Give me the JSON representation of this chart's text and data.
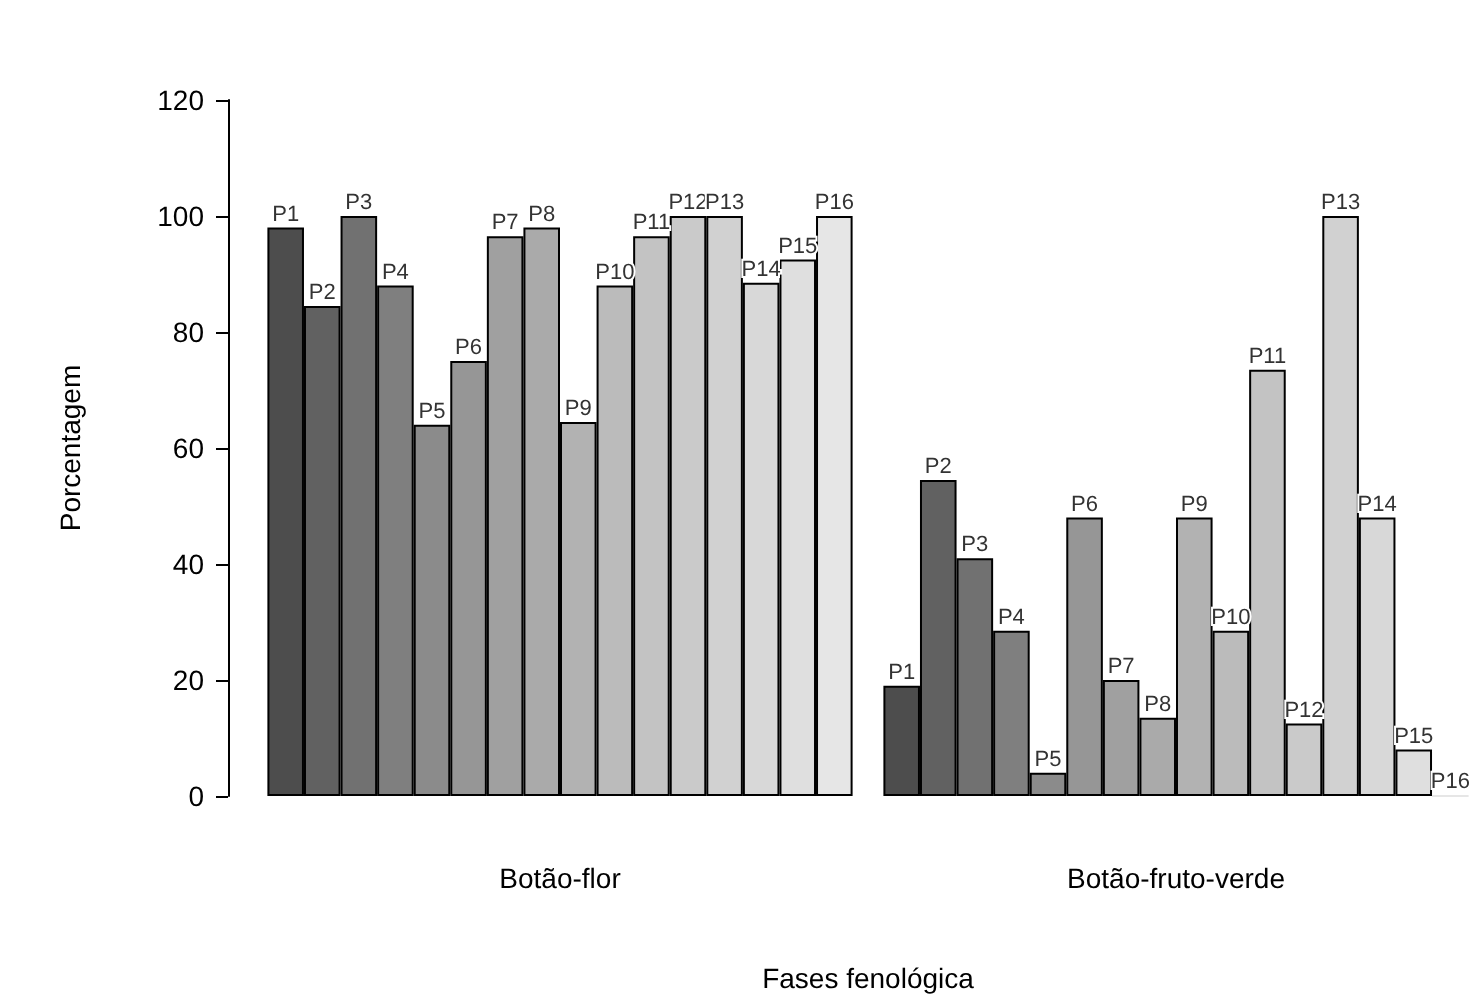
{
  "chart_data": {
    "type": "bar",
    "xlabel": "Fases fenológica",
    "ylabel": "Porcentagem",
    "categories": [
      "Botão-flor",
      "Botão-fruto-verde"
    ],
    "ylim": [
      0,
      120
    ],
    "yticks": [
      0,
      20,
      40,
      60,
      80,
      100,
      120
    ],
    "grid": false,
    "legend": false,
    "series": [
      {
        "name": "P1",
        "color": "#4d4d4d",
        "values": [
          98,
          19
        ]
      },
      {
        "name": "P2",
        "color": "#616161",
        "values": [
          84.5,
          54.5
        ]
      },
      {
        "name": "P3",
        "color": "#717171",
        "values": [
          100,
          41
        ]
      },
      {
        "name": "P4",
        "color": "#7f7f7f",
        "values": [
          88,
          28.5
        ]
      },
      {
        "name": "P5",
        "color": "#8b8b8b",
        "values": [
          64,
          4
        ]
      },
      {
        "name": "P6",
        "color": "#969696",
        "values": [
          75,
          48
        ]
      },
      {
        "name": "P7",
        "color": "#a0a0a0",
        "values": [
          96.5,
          20
        ]
      },
      {
        "name": "P8",
        "color": "#aaaaaa",
        "values": [
          98,
          13.5
        ]
      },
      {
        "name": "P9",
        "color": "#b2b2b2",
        "values": [
          64.5,
          48
        ]
      },
      {
        "name": "P10",
        "color": "#bbbbbb",
        "values": [
          88,
          28.5
        ]
      },
      {
        "name": "P11",
        "color": "#c3c3c3",
        "values": [
          96.5,
          73.5
        ]
      },
      {
        "name": "P12",
        "color": "#cacaca",
        "values": [
          100,
          12.5
        ]
      },
      {
        "name": "P13",
        "color": "#d1d1d1",
        "values": [
          100,
          100
        ]
      },
      {
        "name": "P14",
        "color": "#d8d8d8",
        "values": [
          88.5,
          48
        ]
      },
      {
        "name": "P15",
        "color": "#dfdfdf",
        "values": [
          92.5,
          8
        ]
      },
      {
        "name": "P16",
        "color": "#e6e6e6",
        "values": [
          100,
          0
        ]
      }
    ]
  }
}
